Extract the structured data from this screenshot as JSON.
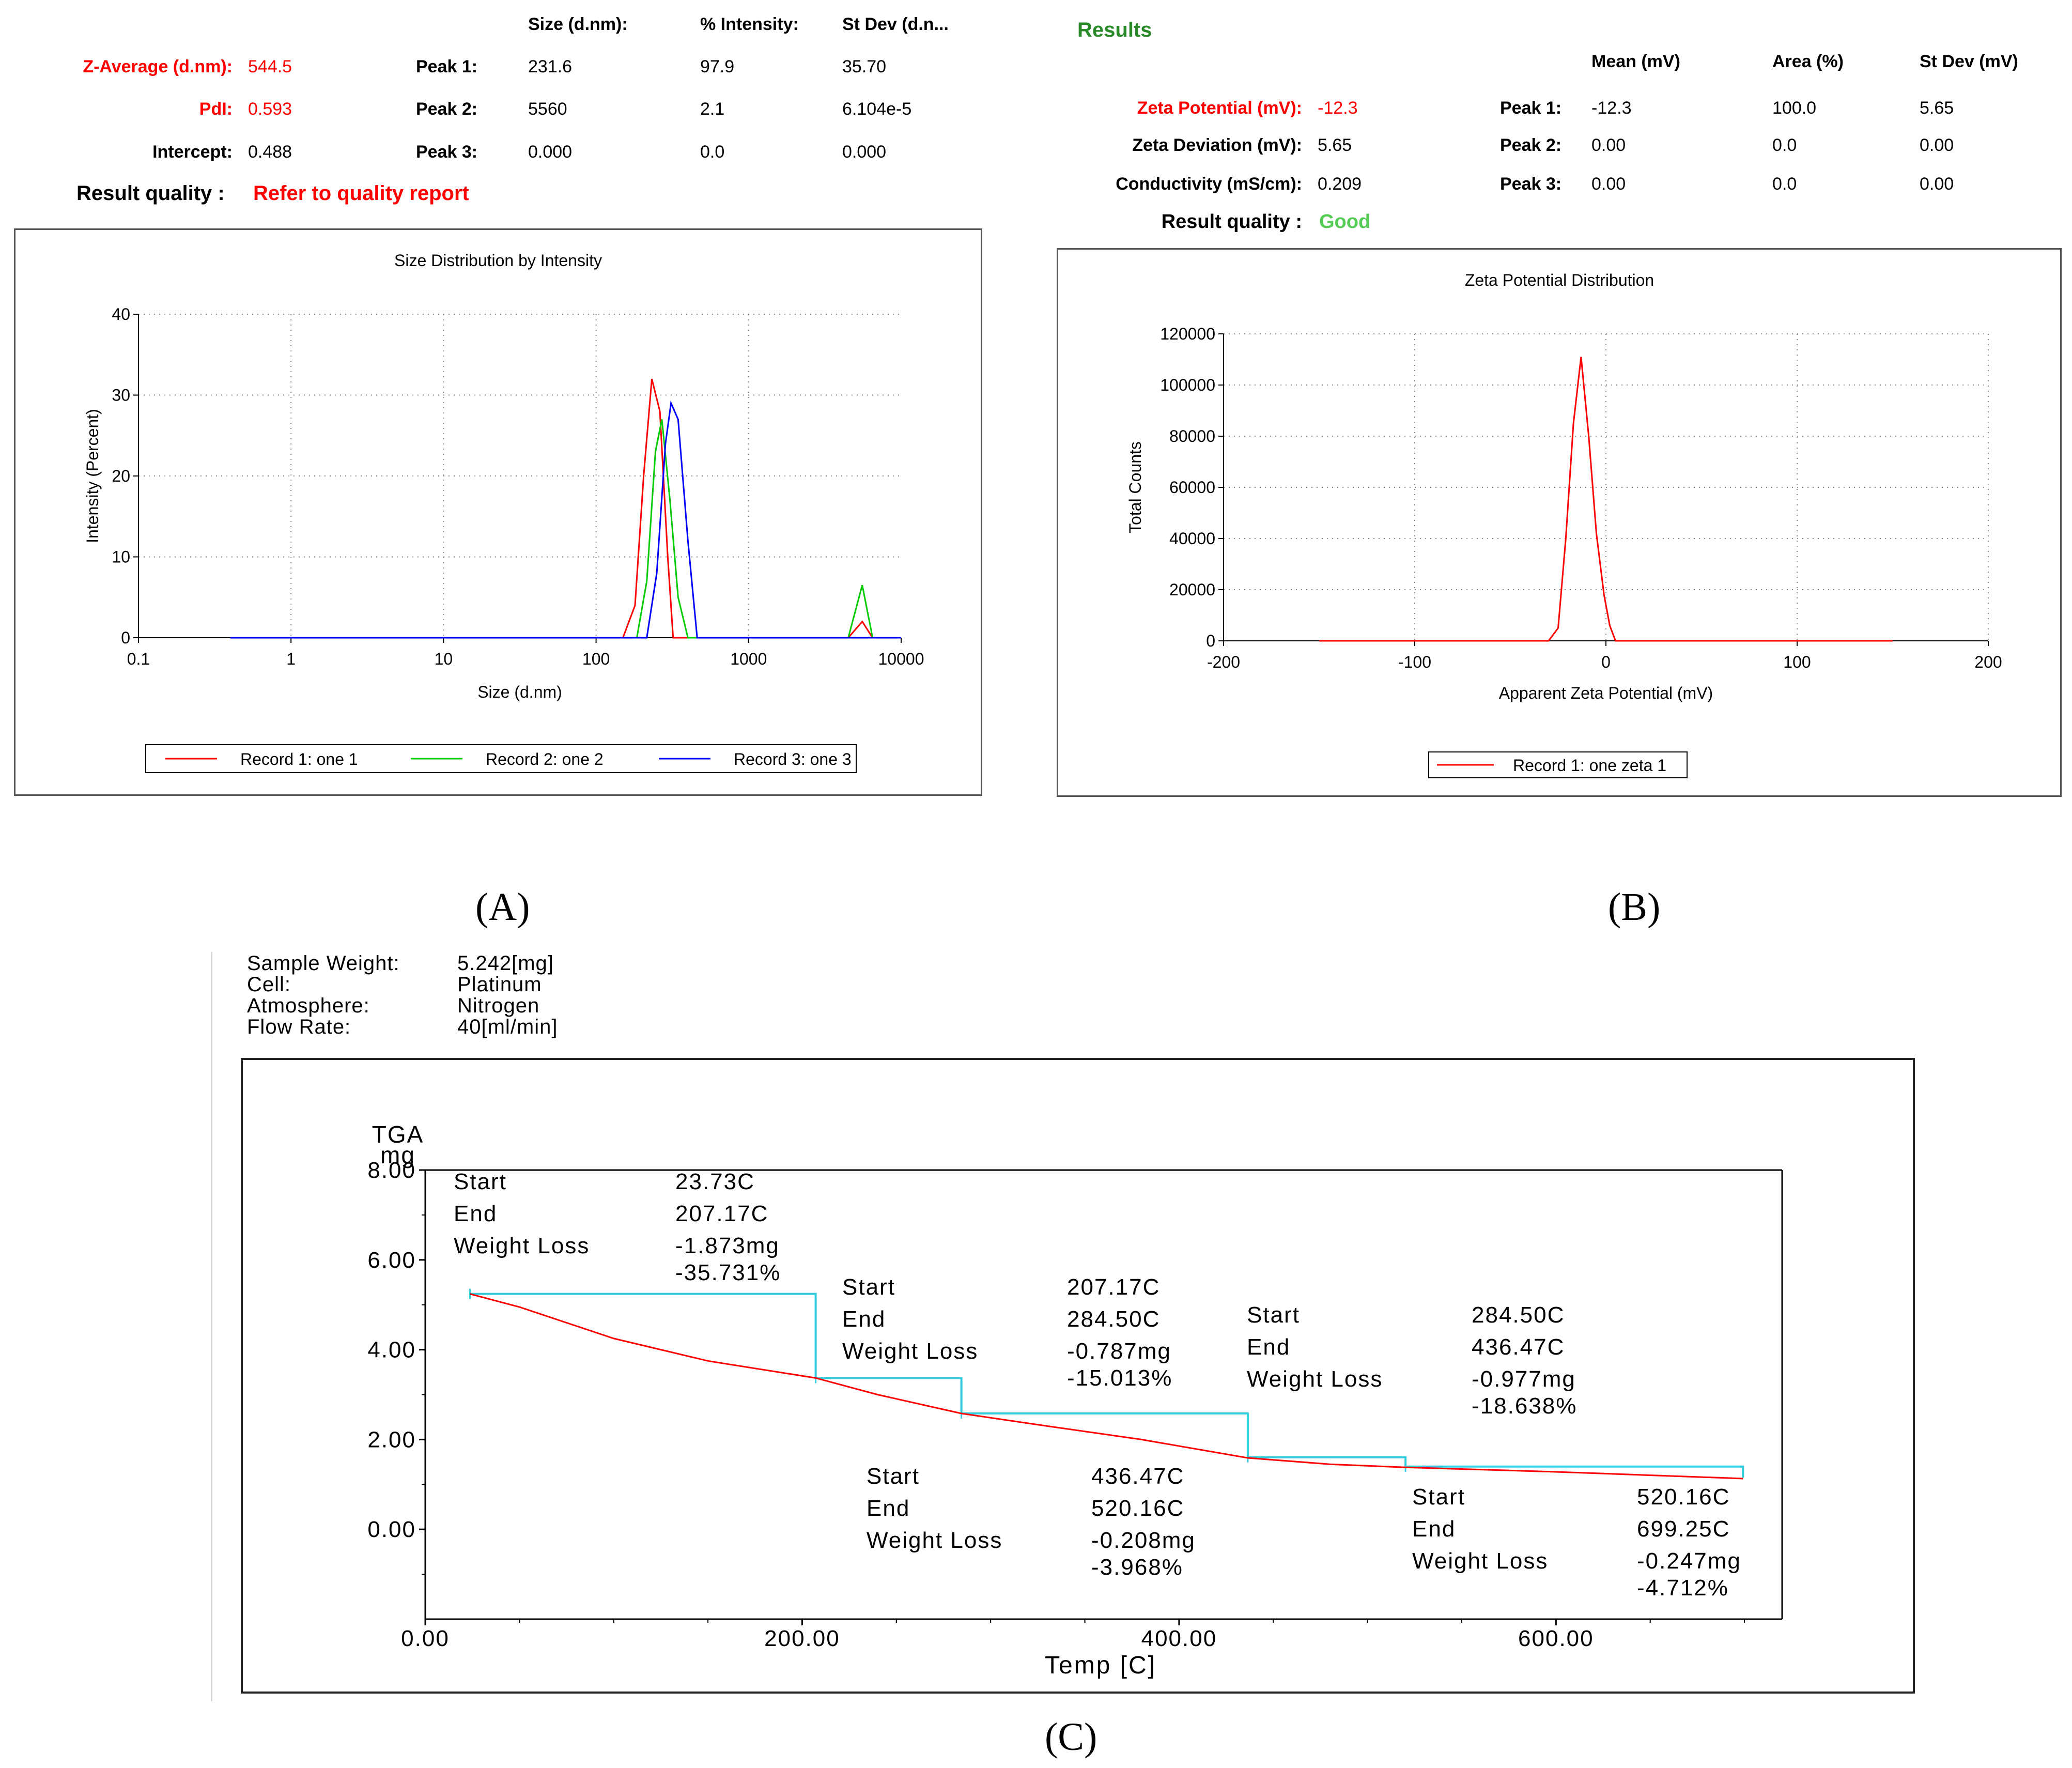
{
  "panels": {
    "a": "(A)",
    "b": "(B)",
    "c": "(C)"
  },
  "size_results": {
    "headers": {
      "size": "Size (d.nm):",
      "intensity": "% Intensity:",
      "stdev": "St Dev (d.n..."
    },
    "z_average_label": "Z-Average (d.nm):",
    "z_average": "544.5",
    "pdi_label": "PdI:",
    "pdi": "0.593",
    "intercept_label": "Intercept:",
    "intercept": "0.488",
    "quality_label": "Result quality :",
    "quality": "Refer to quality report",
    "peaks": [
      {
        "label": "Peak 1:",
        "size": "231.6",
        "intensity": "97.9",
        "stdev": "35.70"
      },
      {
        "label": "Peak 2:",
        "size": "5560",
        "intensity": "2.1",
        "stdev": "6.104e-5"
      },
      {
        "label": "Peak 3:",
        "size": "0.000",
        "intensity": "0.0",
        "stdev": "0.000"
      }
    ]
  },
  "zeta_results": {
    "title": "Results",
    "headers": {
      "mean": "Mean (mV)",
      "area": "Area (%)",
      "stdev": "St Dev (mV)"
    },
    "zeta_potential_label": "Zeta Potential (mV):",
    "zeta_potential": "-12.3",
    "zeta_deviation_label": "Zeta Deviation (mV):",
    "zeta_deviation": "5.65",
    "conductivity_label": "Conductivity (mS/cm):",
    "conductivity": "0.209",
    "quality_label": "Result quality :",
    "quality": "Good",
    "peaks": [
      {
        "label": "Peak 1:",
        "mean": "-12.3",
        "area": "100.0",
        "stdev": "5.65"
      },
      {
        "label": "Peak 2:",
        "mean": "0.00",
        "area": "0.0",
        "stdev": "0.00"
      },
      {
        "label": "Peak 3:",
        "mean": "0.00",
        "area": "0.0",
        "stdev": "0.00"
      }
    ]
  },
  "tga_info": {
    "rows": [
      {
        "label": "Sample Weight:",
        "value": "5.242[mg]"
      },
      {
        "label": "Cell:",
        "value": "Platinum"
      },
      {
        "label": "Atmosphere:",
        "value": "Nitrogen"
      },
      {
        "label": "Flow Rate:",
        "value": "40[ml/min]"
      }
    ]
  },
  "colors": {
    "red": "#ff0000",
    "green": "#00cc00",
    "blue": "#0000ff",
    "cyan": "#33ccdd",
    "results_green": "#2a8a2a"
  },
  "chart_data": [
    {
      "type": "line",
      "title": "Size Distribution by Intensity",
      "xlabel": "Size (d.nm)",
      "ylabel": "Intensity (Percent)",
      "xscale": "log",
      "xlim": [
        0.1,
        10000
      ],
      "ylim": [
        0,
        40
      ],
      "xticks": [
        0.1,
        1,
        10,
        100,
        1000,
        10000
      ],
      "xtick_labels": [
        "0.1",
        "1",
        "10",
        "100",
        "1000",
        "10000"
      ],
      "yticks": [
        0,
        10,
        20,
        30,
        40
      ],
      "ytick_labels": [
        "0",
        "10",
        "20",
        "30",
        "40"
      ],
      "grid": true,
      "legend_position": "bottom",
      "series": [
        {
          "name": "Record 1: one 1",
          "color": "#ff0000",
          "x": [
            0.4,
            150,
            180,
            205,
            232,
            262,
            295,
            320,
            4500,
            5560,
            6500,
            10000
          ],
          "y": [
            0,
            0,
            4,
            20,
            32,
            28,
            10,
            0,
            0,
            2,
            0,
            0
          ]
        },
        {
          "name": "Record 2: one 2",
          "color": "#00cc00",
          "x": [
            0.4,
            185,
            215,
            245,
            270,
            305,
            345,
            400,
            4500,
            5560,
            6500,
            10000
          ],
          "y": [
            0,
            0,
            7,
            23,
            27,
            17,
            5,
            0,
            0,
            6.5,
            0,
            0
          ]
        },
        {
          "name": "Record 3: one 3",
          "color": "#0000ff",
          "x": [
            0.4,
            215,
            250,
            285,
            310,
            345,
            400,
            460,
            10000
          ],
          "y": [
            0,
            0,
            8,
            24,
            29,
            27,
            12,
            0,
            0
          ]
        }
      ]
    },
    {
      "type": "line",
      "title": "Zeta Potential Distribution",
      "xlabel": "Apparent Zeta Potential (mV)",
      "ylabel": "Total Counts",
      "xlim": [
        -200,
        200
      ],
      "ylim": [
        0,
        120000
      ],
      "xticks": [
        -200,
        -100,
        0,
        100,
        200
      ],
      "xtick_labels": [
        "-200",
        "-100",
        "0",
        "100",
        "200"
      ],
      "yticks": [
        0,
        20000,
        40000,
        60000,
        80000,
        100000,
        120000
      ],
      "ytick_labels": [
        "0",
        "20000",
        "40000",
        "60000",
        "80000",
        "100000",
        "120000"
      ],
      "grid": true,
      "legend_position": "bottom",
      "series": [
        {
          "name": "Record 1: one  zeta 1",
          "color": "#ff0000",
          "x": [
            -150,
            -30,
            -25,
            -21,
            -17,
            -13,
            -9,
            -5,
            -1,
            2,
            5,
            150
          ],
          "y": [
            0,
            0,
            5000,
            40000,
            85000,
            111000,
            80000,
            42000,
            18000,
            6000,
            0,
            0
          ]
        }
      ]
    },
    {
      "type": "line",
      "title": "TGA",
      "ylabel": "TGA",
      "yunit": "mg",
      "xlabel": "Temp  [C]",
      "xlim": [
        0,
        720
      ],
      "ylim": [
        -2,
        8
      ],
      "xticks": [
        0,
        200,
        400,
        600
      ],
      "xtick_labels": [
        "0.00",
        "200.00",
        "400.00",
        "600.00"
      ],
      "yticks": [
        0,
        2,
        4,
        6,
        8
      ],
      "ytick_labels": [
        "0.00",
        "2.00",
        "4.00",
        "6.00",
        "8.00"
      ],
      "grid": false,
      "series": [
        {
          "name": "TGA",
          "color": "#ff0000",
          "x": [
            23.73,
            50,
            100,
            150,
            207.17,
            240,
            284.5,
            330,
            380,
            436.47,
            480,
            520.16,
            600,
            699.25
          ],
          "y": [
            5.242,
            4.95,
            4.25,
            3.75,
            3.37,
            3.0,
            2.58,
            2.3,
            2.0,
            1.59,
            1.45,
            1.38,
            1.28,
            1.13
          ]
        }
      ],
      "steps": [
        {
          "start_temp": 23.73,
          "end_temp": 207.17,
          "start_w": 5.242,
          "end_w": 3.369,
          "labels": {
            "start": "Start",
            "end": "End",
            "loss": "Weight Loss"
          },
          "values": {
            "start": "23.73C",
            "end": "207.17C",
            "loss_mg": "-1.873mg",
            "loss_pct": "-35.731%"
          }
        },
        {
          "start_temp": 207.17,
          "end_temp": 284.5,
          "start_w": 3.369,
          "end_w": 2.582,
          "labels": {
            "start": "Start",
            "end": "End",
            "loss": "Weight Loss"
          },
          "values": {
            "start": "207.17C",
            "end": "284.50C",
            "loss_mg": "-0.787mg",
            "loss_pct": "-15.013%"
          }
        },
        {
          "start_temp": 284.5,
          "end_temp": 436.47,
          "start_w": 2.582,
          "end_w": 1.605,
          "labels": {
            "start": "Start",
            "end": "End",
            "loss": "Weight Loss"
          },
          "values": {
            "start": "284.50C",
            "end": "436.47C",
            "loss_mg": "-0.977mg",
            "loss_pct": "-18.638%"
          }
        },
        {
          "start_temp": 436.47,
          "end_temp": 520.16,
          "start_w": 1.605,
          "end_w": 1.397,
          "labels": {
            "start": "Start",
            "end": "End",
            "loss": "Weight Loss"
          },
          "values": {
            "start": "436.47C",
            "end": "520.16C",
            "loss_mg": "-0.208mg",
            "loss_pct": "-3.968%"
          }
        },
        {
          "start_temp": 520.16,
          "end_temp": 699.25,
          "start_w": 1.397,
          "end_w": 1.15,
          "labels": {
            "start": "Start",
            "end": "End",
            "loss": "Weight Loss"
          },
          "values": {
            "start": "520.16C",
            "end": "699.25C",
            "loss_mg": "-0.247mg",
            "loss_pct": "-4.712%"
          }
        }
      ]
    }
  ]
}
